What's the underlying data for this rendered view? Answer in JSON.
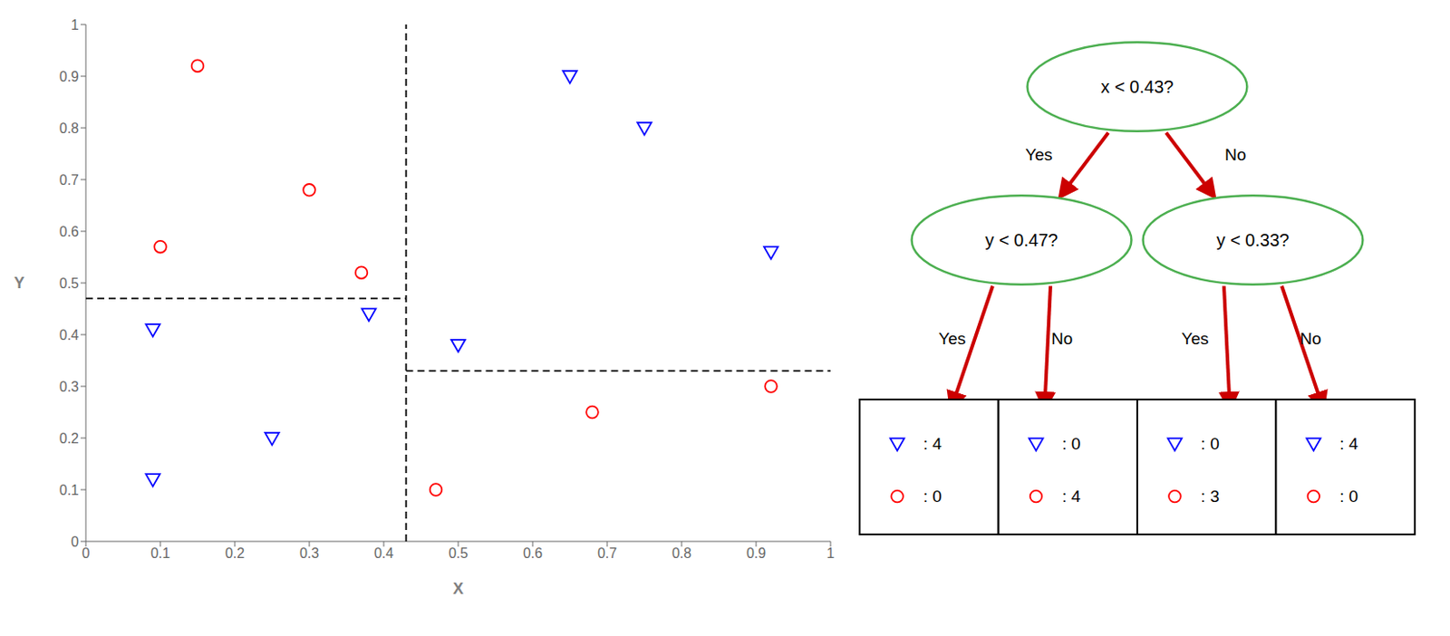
{
  "chart_data": [
    {
      "type": "scatter",
      "xlabel": "X",
      "ylabel": "Y",
      "xlim": [
        0,
        1
      ],
      "ylim": [
        0,
        1
      ],
      "xticks": [
        0,
        0.1,
        0.2,
        0.3,
        0.4,
        0.5,
        0.6,
        0.7,
        0.8,
        0.9,
        1
      ],
      "yticks": [
        0,
        0.1,
        0.2,
        0.3,
        0.4,
        0.5,
        0.6,
        0.7,
        0.8,
        0.9,
        1
      ],
      "grid": false,
      "series": [
        {
          "type": "scatter",
          "color": "blue",
          "marker": "triangle_down",
          "x": [
            0.09,
            0.09,
            0.25,
            0.38,
            0.5,
            0.65,
            0.75,
            0.92
          ],
          "values": [
            0.41,
            0.12,
            0.2,
            0.44,
            0.38,
            0.9,
            0.8,
            0.56
          ]
        },
        {
          "type": "scatter",
          "color": "red",
          "marker": "circle",
          "x": [
            0.15,
            0.1,
            0.3,
            0.37,
            0.47,
            0.68,
            0.92
          ],
          "values": [
            0.92,
            0.57,
            0.68,
            0.52,
            0.1,
            0.25,
            0.3
          ]
        },
        {
          "type": "line",
          "color": "black",
          "line_style": "dashed",
          "x": [
            0.43,
            0.43
          ],
          "values": [
            0,
            1
          ]
        },
        {
          "type": "line",
          "color": "black",
          "line_style": "dashed",
          "x": [
            0,
            0.43
          ],
          "values": [
            0.47,
            0.47
          ]
        },
        {
          "type": "line",
          "color": "black",
          "line_style": "dashed",
          "x": [
            0.43,
            1
          ],
          "values": [
            0.33,
            0.33
          ]
        }
      ]
    },
    {
      "type": "tree",
      "nodes": {
        "texts": [
          "x < 0.43?",
          "y < 0.47?",
          "y < 0.33?"
        ],
        "color": "#4CAF50"
      },
      "edges": {
        "labels": [
          "Yes",
          "No",
          "Yes",
          "No",
          "Yes",
          "No"
        ],
        "color": "#CC0000"
      },
      "leaves": [
        {
          "values": [
            4,
            0
          ],
          "value_labels": [
            ": 4",
            ": 0"
          ]
        },
        {
          "values": [
            0,
            4
          ],
          "value_labels": [
            ": 0",
            ": 4"
          ]
        },
        {
          "values": [
            0,
            3
          ],
          "value_labels": [
            ": 0",
            ": 3"
          ]
        },
        {
          "values": [
            4,
            0
          ],
          "value_labels": [
            ": 4",
            ": 0"
          ]
        }
      ]
    }
  ]
}
